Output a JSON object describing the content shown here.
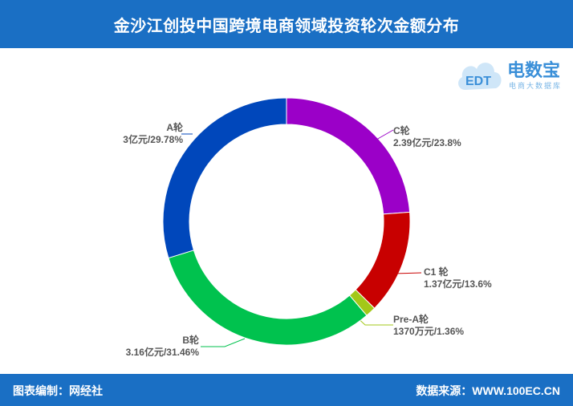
{
  "header": {
    "title": "金沙江创投中国跨境电商领域投资轮次金额分布"
  },
  "footer": {
    "left": "图表编制：网经社",
    "right": "数据来源：WWW.100EC.CN"
  },
  "logo": {
    "brand": "电数宝",
    "sub": "电商大数据库",
    "mark": "EDT"
  },
  "chart_data": {
    "type": "pie",
    "variant": "donut",
    "categories": [
      "C轮",
      "C1 轮",
      "Pre-A轮",
      "B轮",
      "A轮"
    ],
    "values": [
      23.8,
      13.6,
      1.36,
      31.46,
      29.78
    ],
    "amounts": [
      "2.39亿元",
      "1.37亿元",
      "1370万元",
      "3.16亿元",
      "3亿元"
    ],
    "labels": [
      "2.39亿元/23.8%",
      "1.37亿元/13.6%",
      "1370万元/1.36%",
      "3.16亿元/31.46%",
      "3亿元/29.78%"
    ],
    "colors": [
      "#9b00c8",
      "#c80000",
      "#a3c818",
      "#00c24e",
      "#0047bb"
    ],
    "title": "金沙江创投中国跨境电商领域投资轮次金额分布"
  }
}
